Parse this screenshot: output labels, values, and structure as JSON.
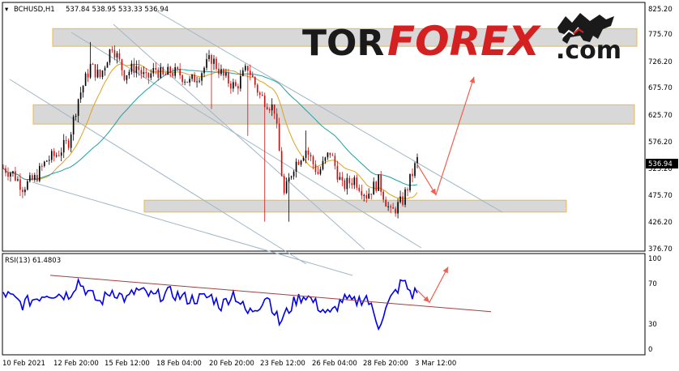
{
  "header": {
    "symbol": "BCHUSD,H1",
    "ohlc": "537.84 538.95 533.33 536.94"
  },
  "watermark": {
    "part1": "TOR",
    "part2": "FOREX",
    "part3": ".com",
    "icon": "bull-logo-icon"
  },
  "rsi": {
    "label": "RSI(13) 61.4803",
    "levels": [
      "100",
      "70",
      "30",
      "0"
    ]
  },
  "colors": {
    "bull_candle": "#000000",
    "bear_candle": "#cc1111",
    "ma_fast": "#e0a020",
    "ma_slow": "#20a0a0",
    "rsi_line": "#0000ee",
    "zone_fill": "#d8d8d8",
    "zone_border": "#f0b840",
    "forecast_arrow": "#f06050",
    "trend_line": "#9fb7c9",
    "rsi_trend": "#a04040",
    "brand_red": "#d42020",
    "brand_dark": "#1a1a1a"
  },
  "chart_data": {
    "type": "line",
    "title": "BCHUSD,H1",
    "price_axis_ticks": [
      "825.20",
      "775.70",
      "726.20",
      "675.70",
      "625.70",
      "576.20",
      "525.20",
      "475.70",
      "426.20",
      "376.70"
    ],
    "current_price": "536.94",
    "x_tick_labels": [
      "10 Feb 2021",
      "12 Feb 20:00",
      "15 Feb 12:00",
      "18 Feb 04:00",
      "20 Feb 20:00",
      "23 Feb 12:00",
      "26 Feb 04:00",
      "28 Feb 20:00",
      "3 Mar 12:00"
    ],
    "ylim": [
      376.7,
      825.2
    ],
    "price_anchors": {
      "index": [
        0,
        4,
        8,
        13,
        18,
        22,
        27,
        31,
        36,
        40,
        45,
        50,
        55,
        59,
        63,
        66,
        69,
        73,
        77,
        81,
        86,
        91,
        96,
        101,
        106,
        112,
        116,
        120,
        125,
        130,
        135,
        140,
        145,
        150,
        155,
        160,
        165,
        171
      ],
      "close": [
        530,
        520,
        495,
        510,
        545,
        555,
        580,
        660,
        720,
        700,
        760,
        705,
        720,
        695,
        715,
        700,
        710,
        705,
        690,
        705,
        735,
        700,
        680,
        718,
        665,
        640,
        480,
        535,
        565,
        520,
        560,
        495,
        510,
        480,
        505,
        445,
        470,
        545
      ]
    },
    "rsi_anchors": {
      "index": [
        0,
        8,
        18,
        27,
        31,
        36,
        40,
        45,
        51,
        55,
        62,
        69,
        77,
        86,
        90,
        95,
        101,
        106,
        109,
        114,
        121,
        125,
        130,
        135,
        140,
        145,
        150,
        155,
        160,
        165,
        169,
        171
      ],
      "value": [
        62,
        50,
        62,
        60,
        75,
        60,
        52,
        65,
        55,
        65,
        58,
        62,
        55,
        58,
        48,
        62,
        40,
        50,
        60,
        30,
        55,
        60,
        48,
        38,
        55,
        52,
        58,
        28,
        55,
        75,
        60,
        65
      ]
    },
    "resistance_zones": [
      [
        757,
        790
      ],
      [
        612,
        648
      ]
    ],
    "support_zones": [
      [
        448,
        470
      ]
    ],
    "forecast_price_path": [
      537,
      480,
      700
    ],
    "forecast_rsi_path": [
      65,
      52,
      90
    ]
  }
}
